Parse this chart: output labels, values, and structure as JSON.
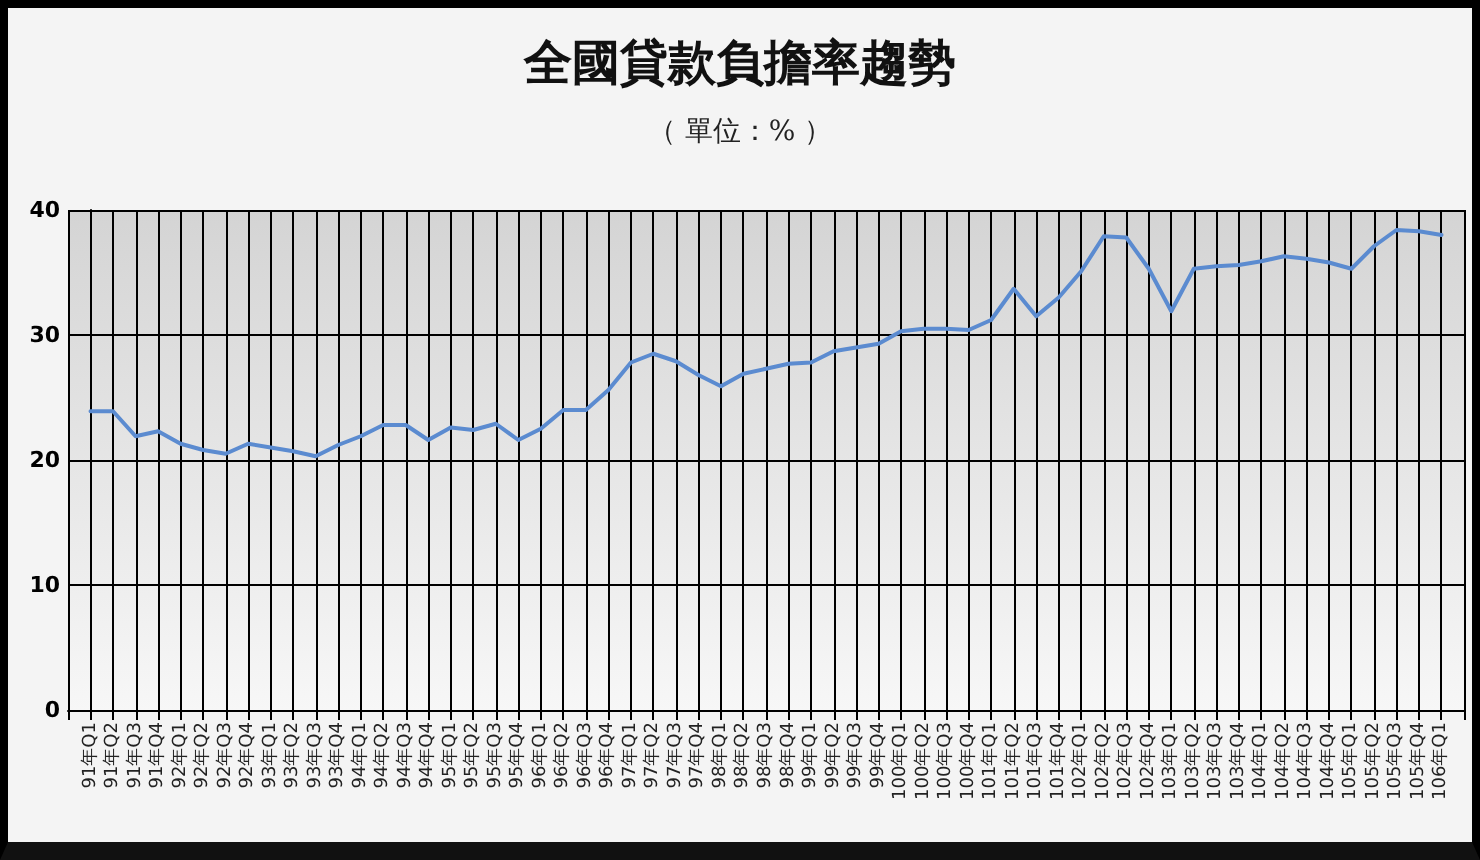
{
  "chart_data": {
    "type": "line",
    "title": "全國貸款負擔率趨勢",
    "subtitle": "（ 單位：% ）",
    "categories": [
      "91年Q1",
      "91年Q2",
      "91年Q3",
      "91年Q4",
      "92年Q1",
      "92年Q2",
      "92年Q3",
      "92年Q4",
      "93年Q1",
      "93年Q2",
      "93年Q3",
      "93年Q4",
      "94年Q1",
      "94年Q2",
      "94年Q3",
      "94年Q4",
      "95年Q1",
      "95年Q2",
      "95年Q3",
      "95年Q4",
      "96年Q1",
      "96年Q2",
      "96年Q3",
      "96年Q4",
      "97年Q1",
      "97年Q2",
      "97年Q3",
      "97年Q4",
      "98年Q1",
      "98年Q2",
      "98年Q3",
      "98年Q4",
      "99年Q1",
      "99年Q2",
      "99年Q3",
      "99年Q4",
      "100年Q1",
      "100年Q2",
      "100年Q3",
      "100年Q4",
      "101年Q1",
      "101年Q2",
      "101年Q3",
      "101年Q4",
      "102年Q1",
      "102年Q2",
      "102年Q3",
      "102年Q4",
      "103年Q1",
      "103年Q2",
      "103年Q3",
      "103年Q4",
      "104年Q1",
      "104年Q2",
      "104年Q3",
      "104年Q4",
      "105年Q1",
      "105年Q2",
      "105年Q3",
      "105年Q4",
      "106年Q1"
    ],
    "series": [
      {
        "color": "#5b8bd0",
        "values": [
          23.9,
          23.9,
          21.9,
          22.3,
          21.3,
          20.8,
          20.5,
          21.3,
          21.0,
          20.7,
          20.3,
          21.2,
          21.9,
          22.8,
          22.8,
          21.6,
          22.6,
          22.4,
          22.9,
          21.6,
          22.5,
          24.0,
          24.0,
          25.6,
          27.8,
          28.5,
          27.9,
          26.8,
          25.9,
          26.9,
          27.3,
          27.7,
          27.8,
          28.7,
          29.0,
          29.3,
          30.3,
          30.5,
          30.5,
          30.4,
          31.2,
          33.7,
          31.5,
          33.0,
          35.1,
          37.9,
          37.8,
          35.3,
          31.9,
          35.3,
          35.5,
          35.6,
          35.9,
          36.3,
          36.1,
          35.8,
          35.3,
          37.1,
          38.4,
          38.3,
          38.0
        ]
      }
    ],
    "ylim": [
      0,
      40
    ],
    "yticks": [
      0,
      10,
      20,
      30,
      40
    ],
    "grid": true
  }
}
